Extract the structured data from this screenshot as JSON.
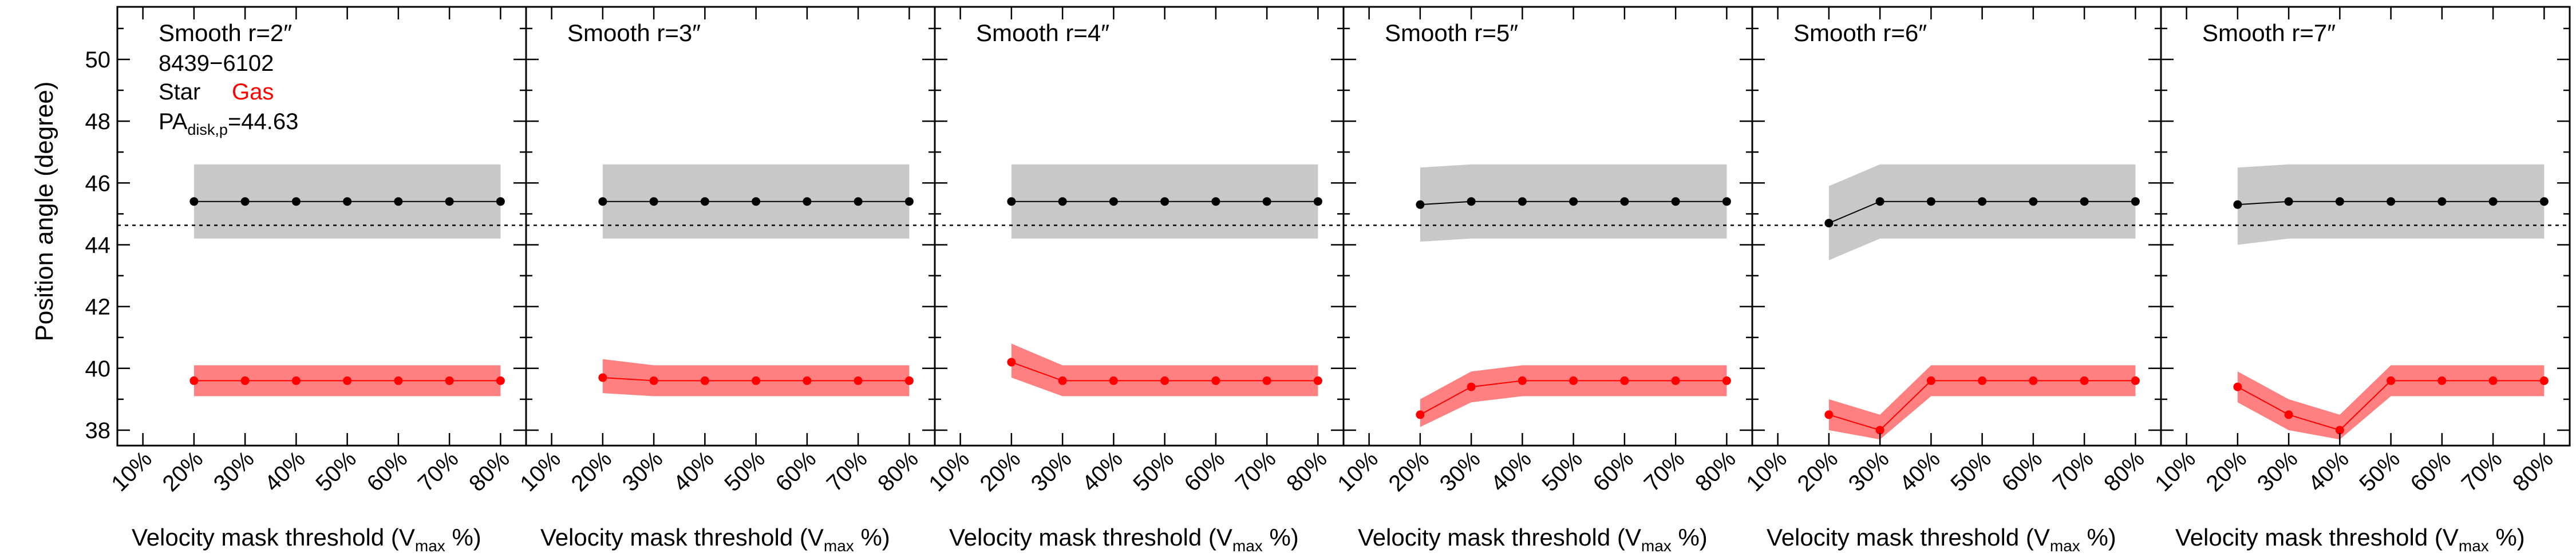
{
  "chart_data": {
    "type": "line",
    "ylabel": "Position angle (degree)",
    "ylim": [
      37.5,
      51.7
    ],
    "yticks": [
      38,
      40,
      42,
      44,
      46,
      48,
      50
    ],
    "xlim": [
      5,
      85
    ],
    "x": [
      20,
      30,
      40,
      50,
      60,
      70,
      80
    ],
    "xtick_labels": [
      "10%",
      "20%",
      "30%",
      "40%",
      "50%",
      "60%",
      "70%",
      "80%"
    ],
    "xtick_values": [
      10,
      20,
      30,
      40,
      50,
      60,
      70,
      80
    ],
    "xlabel_main": "Velocity mask threshold (V",
    "xlabel_sub": "max",
    "xlabel_end": " %)",
    "reference_line": 44.63,
    "colors": {
      "star": "#000000",
      "star_band": "#c8c8c8",
      "gas": "#ff0000",
      "gas_band": "#ff8080"
    },
    "legend": {
      "object_id": "8439−6102",
      "star_label": "Star",
      "gas_label": "Gas",
      "pa_label_main": "PA",
      "pa_label_sub": "disk,p",
      "pa_value": "=44.63"
    },
    "panels": [
      {
        "title": "Smooth r=2″",
        "star": {
          "values": [
            45.4,
            45.4,
            45.4,
            45.4,
            45.4,
            45.4,
            45.4
          ],
          "lower": [
            44.2,
            44.2,
            44.2,
            44.2,
            44.2,
            44.2,
            44.2
          ],
          "upper": [
            46.6,
            46.6,
            46.6,
            46.6,
            46.6,
            46.6,
            46.6
          ]
        },
        "gas": {
          "values": [
            39.6,
            39.6,
            39.6,
            39.6,
            39.6,
            39.6,
            39.6
          ],
          "lower": [
            39.1,
            39.1,
            39.1,
            39.1,
            39.1,
            39.1,
            39.1
          ],
          "upper": [
            40.1,
            40.1,
            40.1,
            40.1,
            40.1,
            40.1,
            40.1
          ]
        }
      },
      {
        "title": "Smooth r=3″",
        "star": {
          "values": [
            45.4,
            45.4,
            45.4,
            45.4,
            45.4,
            45.4,
            45.4
          ],
          "lower": [
            44.2,
            44.2,
            44.2,
            44.2,
            44.2,
            44.2,
            44.2
          ],
          "upper": [
            46.6,
            46.6,
            46.6,
            46.6,
            46.6,
            46.6,
            46.6
          ]
        },
        "gas": {
          "values": [
            39.7,
            39.6,
            39.6,
            39.6,
            39.6,
            39.6,
            39.6
          ],
          "lower": [
            39.2,
            39.1,
            39.1,
            39.1,
            39.1,
            39.1,
            39.1
          ],
          "upper": [
            40.3,
            40.1,
            40.1,
            40.1,
            40.1,
            40.1,
            40.1
          ]
        }
      },
      {
        "title": "Smooth r=4″",
        "star": {
          "values": [
            45.4,
            45.4,
            45.4,
            45.4,
            45.4,
            45.4,
            45.4
          ],
          "lower": [
            44.2,
            44.2,
            44.2,
            44.2,
            44.2,
            44.2,
            44.2
          ],
          "upper": [
            46.6,
            46.6,
            46.6,
            46.6,
            46.6,
            46.6,
            46.6
          ]
        },
        "gas": {
          "values": [
            40.2,
            39.6,
            39.6,
            39.6,
            39.6,
            39.6,
            39.6
          ],
          "lower": [
            39.7,
            39.1,
            39.1,
            39.1,
            39.1,
            39.1,
            39.1
          ],
          "upper": [
            40.8,
            40.1,
            40.1,
            40.1,
            40.1,
            40.1,
            40.1
          ]
        }
      },
      {
        "title": "Smooth r=5″",
        "star": {
          "values": [
            45.3,
            45.4,
            45.4,
            45.4,
            45.4,
            45.4,
            45.4
          ],
          "lower": [
            44.1,
            44.2,
            44.2,
            44.2,
            44.2,
            44.2,
            44.2
          ],
          "upper": [
            46.5,
            46.6,
            46.6,
            46.6,
            46.6,
            46.6,
            46.6
          ]
        },
        "gas": {
          "values": [
            38.5,
            39.4,
            39.6,
            39.6,
            39.6,
            39.6,
            39.6
          ],
          "lower": [
            38.1,
            38.9,
            39.1,
            39.1,
            39.1,
            39.1,
            39.1
          ],
          "upper": [
            39.0,
            39.9,
            40.1,
            40.1,
            40.1,
            40.1,
            40.1
          ]
        }
      },
      {
        "title": "Smooth r=6″",
        "star": {
          "values": [
            44.7,
            45.4,
            45.4,
            45.4,
            45.4,
            45.4,
            45.4
          ],
          "lower": [
            43.5,
            44.2,
            44.2,
            44.2,
            44.2,
            44.2,
            44.2
          ],
          "upper": [
            45.9,
            46.6,
            46.6,
            46.6,
            46.6,
            46.6,
            46.6
          ]
        },
        "gas": {
          "values": [
            38.5,
            38.0,
            39.6,
            39.6,
            39.6,
            39.6,
            39.6
          ],
          "lower": [
            38.0,
            37.7,
            39.1,
            39.1,
            39.1,
            39.1,
            39.1
          ],
          "upper": [
            39.0,
            38.5,
            40.1,
            40.1,
            40.1,
            40.1,
            40.1
          ]
        }
      },
      {
        "title": "Smooth r=7″",
        "star": {
          "values": [
            45.3,
            45.4,
            45.4,
            45.4,
            45.4,
            45.4,
            45.4
          ],
          "lower": [
            44.0,
            44.2,
            44.2,
            44.2,
            44.2,
            44.2,
            44.2
          ],
          "upper": [
            46.5,
            46.6,
            46.6,
            46.6,
            46.6,
            46.6,
            46.6
          ]
        },
        "gas": {
          "values": [
            39.4,
            38.5,
            38.0,
            39.6,
            39.6,
            39.6,
            39.6
          ],
          "lower": [
            38.9,
            38.0,
            37.7,
            39.1,
            39.1,
            39.1,
            39.1
          ],
          "upper": [
            39.9,
            39.0,
            38.5,
            40.1,
            40.1,
            40.1,
            40.1
          ]
        }
      }
    ]
  }
}
